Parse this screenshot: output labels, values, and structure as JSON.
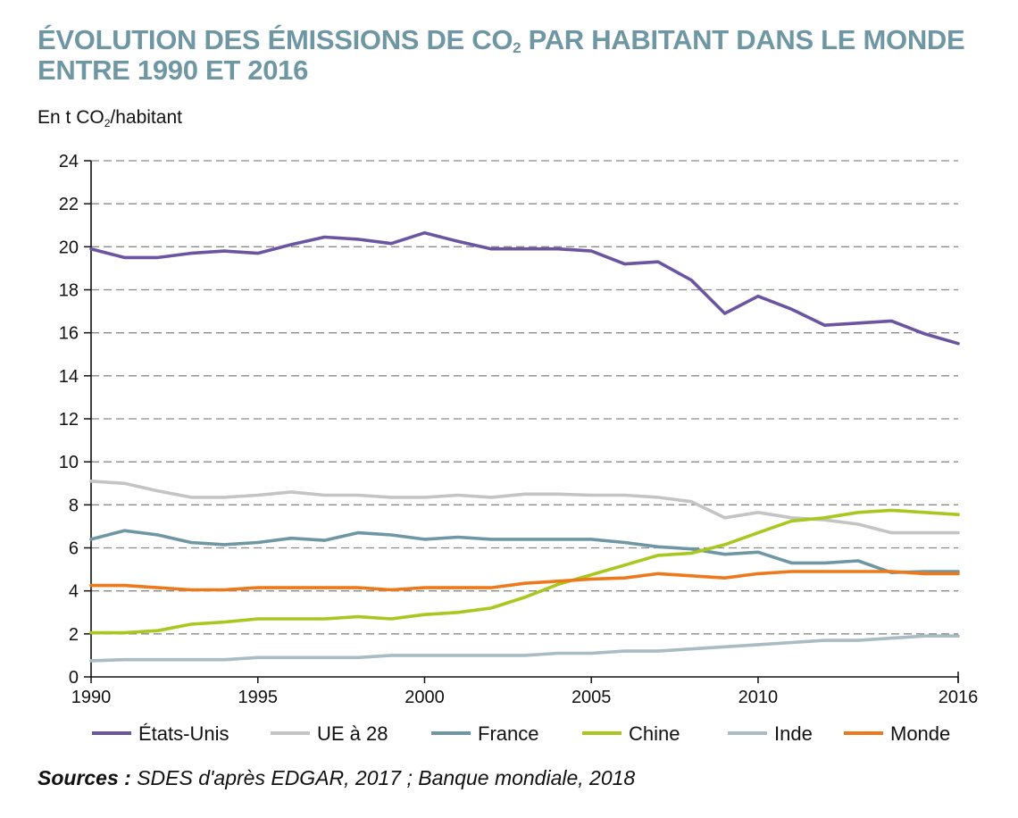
{
  "title": {
    "line1_a": "ÉVOLUTION DES ÉMISSIONS DE CO",
    "line1_sub": "2",
    "line1_b": " PAR HABITANT DANS LE MONDE",
    "line2": "ENTRE 1990 ET 2016"
  },
  "unit_label": {
    "a": "En t CO",
    "sub": "2",
    "b": "/habitant"
  },
  "sources": {
    "label": "Sources :",
    "text": " SDES d'après EDGAR, 2017 ; Banque mondiale, 2018"
  },
  "chart_data": {
    "type": "line",
    "x": [
      1990,
      1991,
      1992,
      1993,
      1994,
      1995,
      1996,
      1997,
      1998,
      1999,
      2000,
      2001,
      2002,
      2003,
      2004,
      2005,
      2006,
      2007,
      2008,
      2009,
      2010,
      2011,
      2012,
      2013,
      2014,
      2015,
      2016
    ],
    "xticks": [
      1990,
      1995,
      2000,
      2005,
      2010,
      2016
    ],
    "yticks": [
      0,
      2,
      4,
      6,
      8,
      10,
      12,
      14,
      16,
      18,
      20,
      22,
      24
    ],
    "xlim": [
      1990,
      2016
    ],
    "ylim": [
      0,
      24
    ],
    "grid": true,
    "legend_position": "bottom",
    "series": [
      {
        "name": "États-Unis",
        "color": "#6b55a0",
        "values": [
          19.9,
          19.5,
          19.5,
          19.7,
          19.8,
          19.7,
          20.1,
          20.45,
          20.35,
          20.15,
          20.65,
          20.25,
          19.9,
          19.9,
          19.9,
          19.8,
          19.2,
          19.3,
          18.45,
          16.9,
          17.7,
          17.1,
          16.35,
          16.45,
          16.55,
          15.95,
          15.5
        ]
      },
      {
        "name": "UE à 28",
        "color": "#c4c4c4",
        "values": [
          9.1,
          9.0,
          8.65,
          8.35,
          8.35,
          8.45,
          8.6,
          8.45,
          8.45,
          8.35,
          8.35,
          8.45,
          8.35,
          8.5,
          8.5,
          8.45,
          8.45,
          8.35,
          8.15,
          7.4,
          7.65,
          7.4,
          7.3,
          7.1,
          6.7,
          6.7,
          6.7
        ]
      },
      {
        "name": "France",
        "color": "#6e97a3",
        "values": [
          6.4,
          6.8,
          6.6,
          6.25,
          6.15,
          6.25,
          6.45,
          6.35,
          6.7,
          6.6,
          6.4,
          6.5,
          6.4,
          6.4,
          6.4,
          6.4,
          6.25,
          6.05,
          5.95,
          5.7,
          5.8,
          5.3,
          5.3,
          5.4,
          4.85,
          4.9,
          4.9
        ]
      },
      {
        "name": "Chine",
        "color": "#a9c81f",
        "values": [
          2.05,
          2.05,
          2.15,
          2.45,
          2.55,
          2.7,
          2.7,
          2.7,
          2.8,
          2.7,
          2.9,
          3.0,
          3.2,
          3.7,
          4.3,
          4.75,
          5.2,
          5.65,
          5.75,
          6.15,
          6.7,
          7.25,
          7.4,
          7.65,
          7.75,
          7.65,
          7.55
        ]
      },
      {
        "name": "Inde",
        "color": "#a9bcc4",
        "values": [
          0.75,
          0.8,
          0.8,
          0.8,
          0.8,
          0.9,
          0.9,
          0.9,
          0.9,
          1.0,
          1.0,
          1.0,
          1.0,
          1.0,
          1.1,
          1.1,
          1.2,
          1.2,
          1.3,
          1.4,
          1.5,
          1.6,
          1.7,
          1.7,
          1.8,
          1.9,
          1.9
        ]
      },
      {
        "name": "Monde",
        "color": "#ec7a1c",
        "values": [
          4.25,
          4.25,
          4.15,
          4.05,
          4.05,
          4.15,
          4.15,
          4.15,
          4.15,
          4.05,
          4.15,
          4.15,
          4.15,
          4.35,
          4.45,
          4.55,
          4.6,
          4.8,
          4.7,
          4.6,
          4.8,
          4.9,
          4.9,
          4.9,
          4.9,
          4.8,
          4.8
        ]
      }
    ]
  }
}
